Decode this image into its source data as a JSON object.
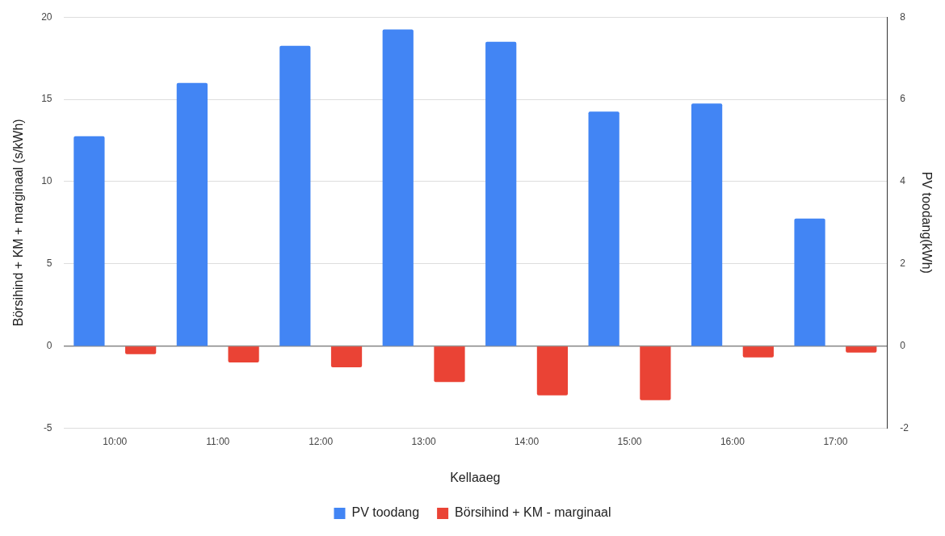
{
  "chart_data": {
    "type": "bar",
    "xlabel": "Kellaaeg",
    "ylabel": "Börsihind + KM + marginaal (s/kWh)",
    "y2label": "PV toodang(kWh)",
    "categories": [
      "10:00",
      "11:00",
      "12:00",
      "13:00",
      "14:00",
      "15:00",
      "16:00",
      "17:00"
    ],
    "series": [
      {
        "name": "PV toodang",
        "color": "#4285f4",
        "axis": "y2",
        "values": [
          5.1,
          6.4,
          7.3,
          7.7,
          7.4,
          5.7,
          5.9,
          3.1
        ]
      },
      {
        "name": "Börsihind + KM - marginaal",
        "color": "#ea4335",
        "axis": "y",
        "values": [
          -0.5,
          -1.0,
          -1.3,
          -2.2,
          -3.0,
          -3.3,
          -0.7,
          -0.4
        ]
      }
    ],
    "ylim": [
      -5,
      20
    ],
    "yticks": [
      -5,
      0,
      5,
      10,
      15,
      20
    ],
    "y2lim": [
      -2,
      8
    ],
    "y2ticks": [
      -2,
      0,
      2,
      4,
      6,
      8
    ],
    "grid": "y",
    "legend": "bottom"
  }
}
